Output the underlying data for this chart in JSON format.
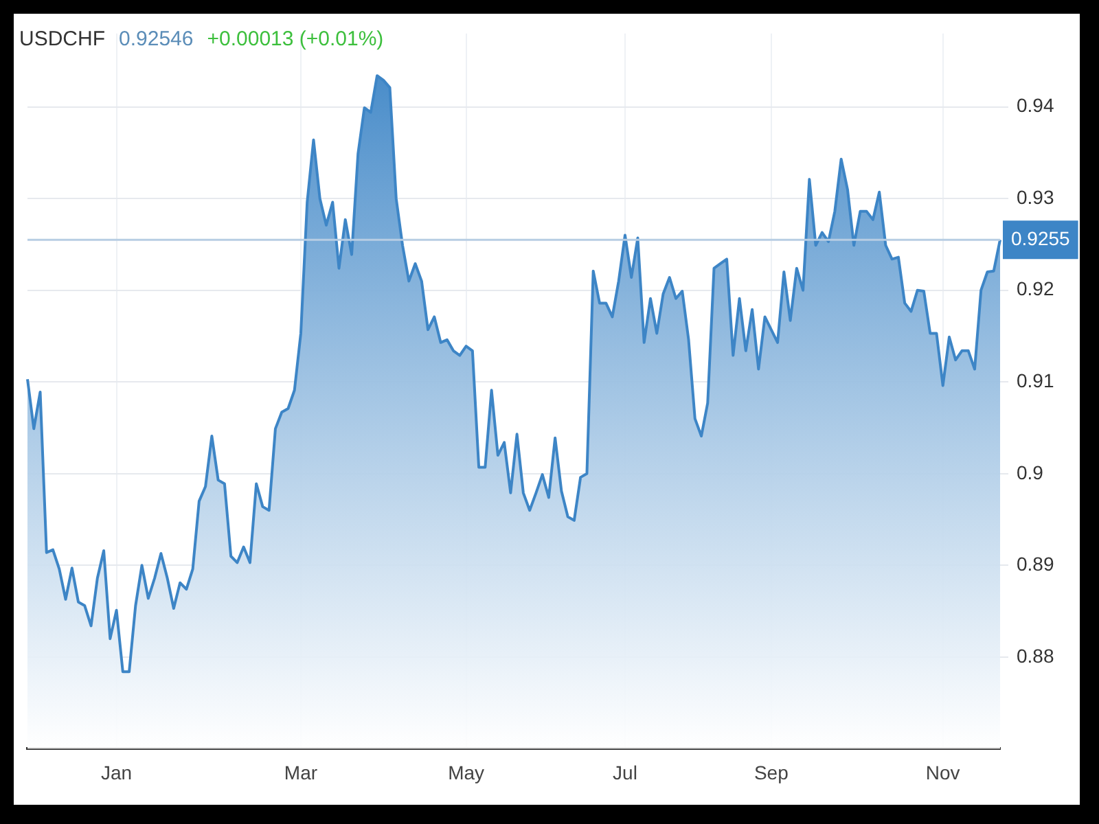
{
  "chart_data": {
    "type": "area",
    "title": "USDCHF",
    "annotations": [
      "0.92546",
      "+0.00013 (+0.01%)"
    ],
    "color": "#3d85c6",
    "categories": [
      null,
      null,
      null,
      null,
      null,
      null,
      null,
      null,
      null,
      null,
      null,
      null,
      null,
      null,
      "Jan",
      null,
      null,
      null,
      null,
      null,
      null,
      null,
      null,
      null,
      null,
      null,
      null,
      null,
      null,
      null,
      null,
      null,
      null,
      null,
      null,
      null,
      null,
      null,
      null,
      null,
      null,
      null,
      null,
      "Mar",
      null,
      null,
      null,
      null,
      null,
      null,
      null,
      null,
      null,
      null,
      null,
      null,
      null,
      null,
      null,
      null,
      null,
      null,
      null,
      null,
      null,
      null,
      null,
      null,
      null,
      "May",
      null,
      null,
      null,
      null,
      null,
      null,
      null,
      null,
      null,
      null,
      null,
      null,
      null,
      null,
      null,
      null,
      null,
      null,
      null,
      null,
      null,
      null,
      null,
      null,
      "Jul",
      null,
      null,
      null,
      null,
      null,
      null,
      null,
      null,
      null,
      null,
      null,
      null,
      null,
      null,
      null,
      null,
      null,
      null,
      null,
      null,
      null,
      null,
      "Sep",
      null,
      null,
      null,
      null,
      null,
      null,
      null,
      null,
      null,
      null,
      null,
      null,
      null,
      null,
      null,
      null,
      null,
      null,
      null,
      null,
      null,
      null,
      null,
      null,
      null,
      null,
      "Nov",
      null,
      null,
      null,
      null,
      null,
      null,
      null,
      null,
      null
    ],
    "values": [
      0.9103,
      0.9049,
      0.9089,
      0.8914,
      0.8917,
      0.8896,
      0.8863,
      0.8897,
      0.886,
      0.8856,
      0.8834,
      0.8886,
      0.8916,
      0.882,
      0.8851,
      0.8784,
      0.8784,
      0.8856,
      0.89,
      0.8864,
      0.8886,
      0.8913,
      0.8886,
      0.8853,
      0.8881,
      0.8874,
      0.8896,
      0.897,
      0.8986,
      0.9041,
      0.8993,
      0.8989,
      0.891,
      0.8903,
      0.892,
      0.8903,
      0.8989,
      0.8964,
      0.896,
      0.9049,
      0.9067,
      0.9071,
      0.9091,
      0.9153,
      0.9296,
      0.9364,
      0.93,
      0.9271,
      0.9296,
      0.9224,
      0.9277,
      0.9239,
      0.9349,
      0.9399,
      0.9394,
      0.9434,
      0.9429,
      0.9421,
      0.93,
      0.9249,
      0.921,
      0.9229,
      0.921,
      0.9157,
      0.9171,
      0.9143,
      0.9146,
      0.9134,
      0.9129,
      0.9139,
      0.9134,
      0.9007,
      0.9007,
      0.9091,
      0.902,
      0.9034,
      0.8979,
      0.9043,
      0.8979,
      0.896,
      0.8979,
      0.8999,
      0.8974,
      0.9039,
      0.8981,
      0.8953,
      0.8949,
      0.8996,
      0.9,
      0.9221,
      0.9186,
      0.9186,
      0.9171,
      0.921,
      0.926,
      0.9214,
      0.9257,
      0.9143,
      0.9191,
      0.9153,
      0.9196,
      0.9214,
      0.9191,
      0.9199,
      0.9146,
      0.906,
      0.9041,
      0.9077,
      0.9224,
      0.9229,
      0.9234,
      0.9129,
      0.9191,
      0.9134,
      0.9179,
      0.9114,
      0.9171,
      0.9157,
      0.9143,
      0.922,
      0.9167,
      0.9224,
      0.92,
      0.9321,
      0.9249,
      0.9263,
      0.9253,
      0.9286,
      0.9343,
      0.931,
      0.9249,
      0.9286,
      0.9286,
      0.9277,
      0.9307,
      0.9249,
      0.9234,
      0.9236,
      0.9186,
      0.9177,
      0.92,
      0.9199,
      0.9153,
      0.9153,
      0.9096,
      0.9149,
      0.9124,
      0.9134,
      0.9134,
      0.9114,
      0.92,
      0.922,
      0.9221,
      0.9255
    ],
    "ylim": [
      0.87,
      0.948
    ],
    "yticks": [
      0.88,
      0.89,
      0.9,
      0.91,
      0.92,
      0.93,
      0.94
    ],
    "grid": true,
    "ref_lines": [
      {
        "axis": "y",
        "value": 0.9255,
        "label": "0.9255",
        "color": "#b7cde3"
      }
    ]
  }
}
